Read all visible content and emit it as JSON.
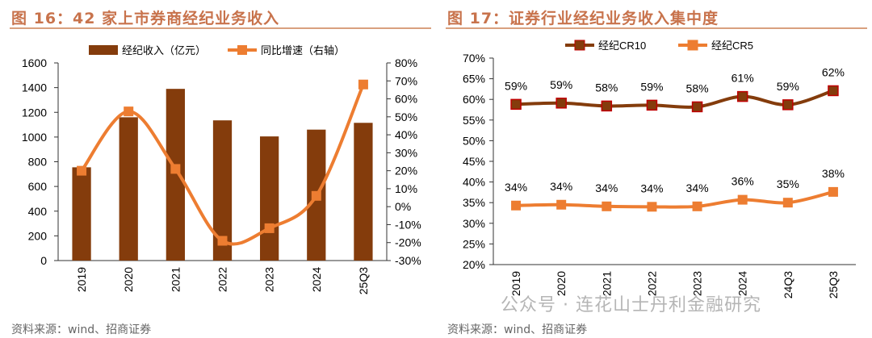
{
  "chart_data": [
    {
      "type": "bar+line",
      "title": "图 16：42 家上市券商经纪业务收入",
      "categories": [
        "2019",
        "2020",
        "2021",
        "2022",
        "2023",
        "2024",
        "25Q3"
      ],
      "series": [
        {
          "name": "经纪收入（亿元）",
          "type": "bar",
          "axis": "left",
          "color": "#843c0c",
          "values": [
            755,
            1160,
            1390,
            1135,
            1005,
            1060,
            1115
          ]
        },
        {
          "name": "同比增速（右轴）",
          "type": "line",
          "axis": "right",
          "color": "#ed7d31",
          "values": [
            20,
            53,
            21,
            -19,
            -12,
            6,
            68
          ]
        }
      ],
      "ylim": [
        0,
        1600
      ],
      "yticks": [
        0,
        200,
        400,
        600,
        800,
        1000,
        1200,
        1400,
        1600
      ],
      "y2lim": [
        -30,
        80
      ],
      "y2ticks": [
        "-30%",
        "-20%",
        "-10%",
        "0%",
        "10%",
        "20%",
        "30%",
        "40%",
        "50%",
        "60%",
        "70%",
        "80%"
      ],
      "legend": "top",
      "grid": false
    },
    {
      "type": "line",
      "title": "图 17：证券行业经纪业务收入集中度",
      "categories": [
        "2019",
        "2020",
        "2021",
        "2022",
        "2023",
        "2024",
        "24Q3",
        "25Q3"
      ],
      "series": [
        {
          "name": "经纪CR10",
          "color": "#843c0c",
          "marker": "#c00000",
          "values": [
            58.8,
            59.1,
            58.4,
            58.6,
            58.2,
            60.7,
            58.7,
            62.1
          ],
          "labels": [
            "59%",
            "59%",
            "58%",
            "59%",
            "58%",
            "61%",
            "59%",
            "62%"
          ]
        },
        {
          "name": "经纪CR5",
          "color": "#ed7d31",
          "marker": "#ed7d31",
          "values": [
            34.3,
            34.5,
            34.1,
            34.0,
            34.1,
            35.7,
            35.0,
            37.6
          ],
          "labels": [
            "34%",
            "34%",
            "34%",
            "34%",
            "34%",
            "36%",
            "35%",
            "38%"
          ]
        }
      ],
      "ylim": [
        20,
        70
      ],
      "yticks": [
        "20%",
        "25%",
        "30%",
        "35%",
        "40%",
        "45%",
        "50%",
        "55%",
        "60%",
        "65%",
        "70%"
      ],
      "legend": "top",
      "grid": false
    }
  ],
  "footer": {
    "left": "资料来源：wind、招商证券",
    "right": "资料来源：wind、招商证券"
  },
  "watermark": "公众号 · 连花山士丹利金融研究"
}
